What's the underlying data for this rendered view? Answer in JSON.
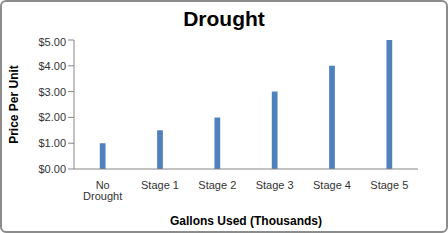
{
  "chart_data": {
    "type": "bar",
    "title": "Drought",
    "x_label": "Gallons Used (Thousands)",
    "y_label": "Price Per Unit",
    "categories": [
      "No Drought",
      "Stage 1",
      "Stage 2",
      "Stage 3",
      "Stage 4",
      "Stage 5"
    ],
    "values": [
      1,
      1.5,
      2,
      3,
      4,
      5
    ],
    "color": "#4f81bd",
    "ylim": [
      0,
      5
    ],
    "yticks": [
      {
        "value": 0,
        "label": "$0.00"
      },
      {
        "value": 1,
        "label": "$1.00"
      },
      {
        "value": 2,
        "label": "$2.00"
      },
      {
        "value": 3,
        "label": "$3.00"
      },
      {
        "value": 4,
        "label": "$4.00"
      },
      {
        "value": 5,
        "label": "$5.00"
      }
    ],
    "grid": false
  }
}
